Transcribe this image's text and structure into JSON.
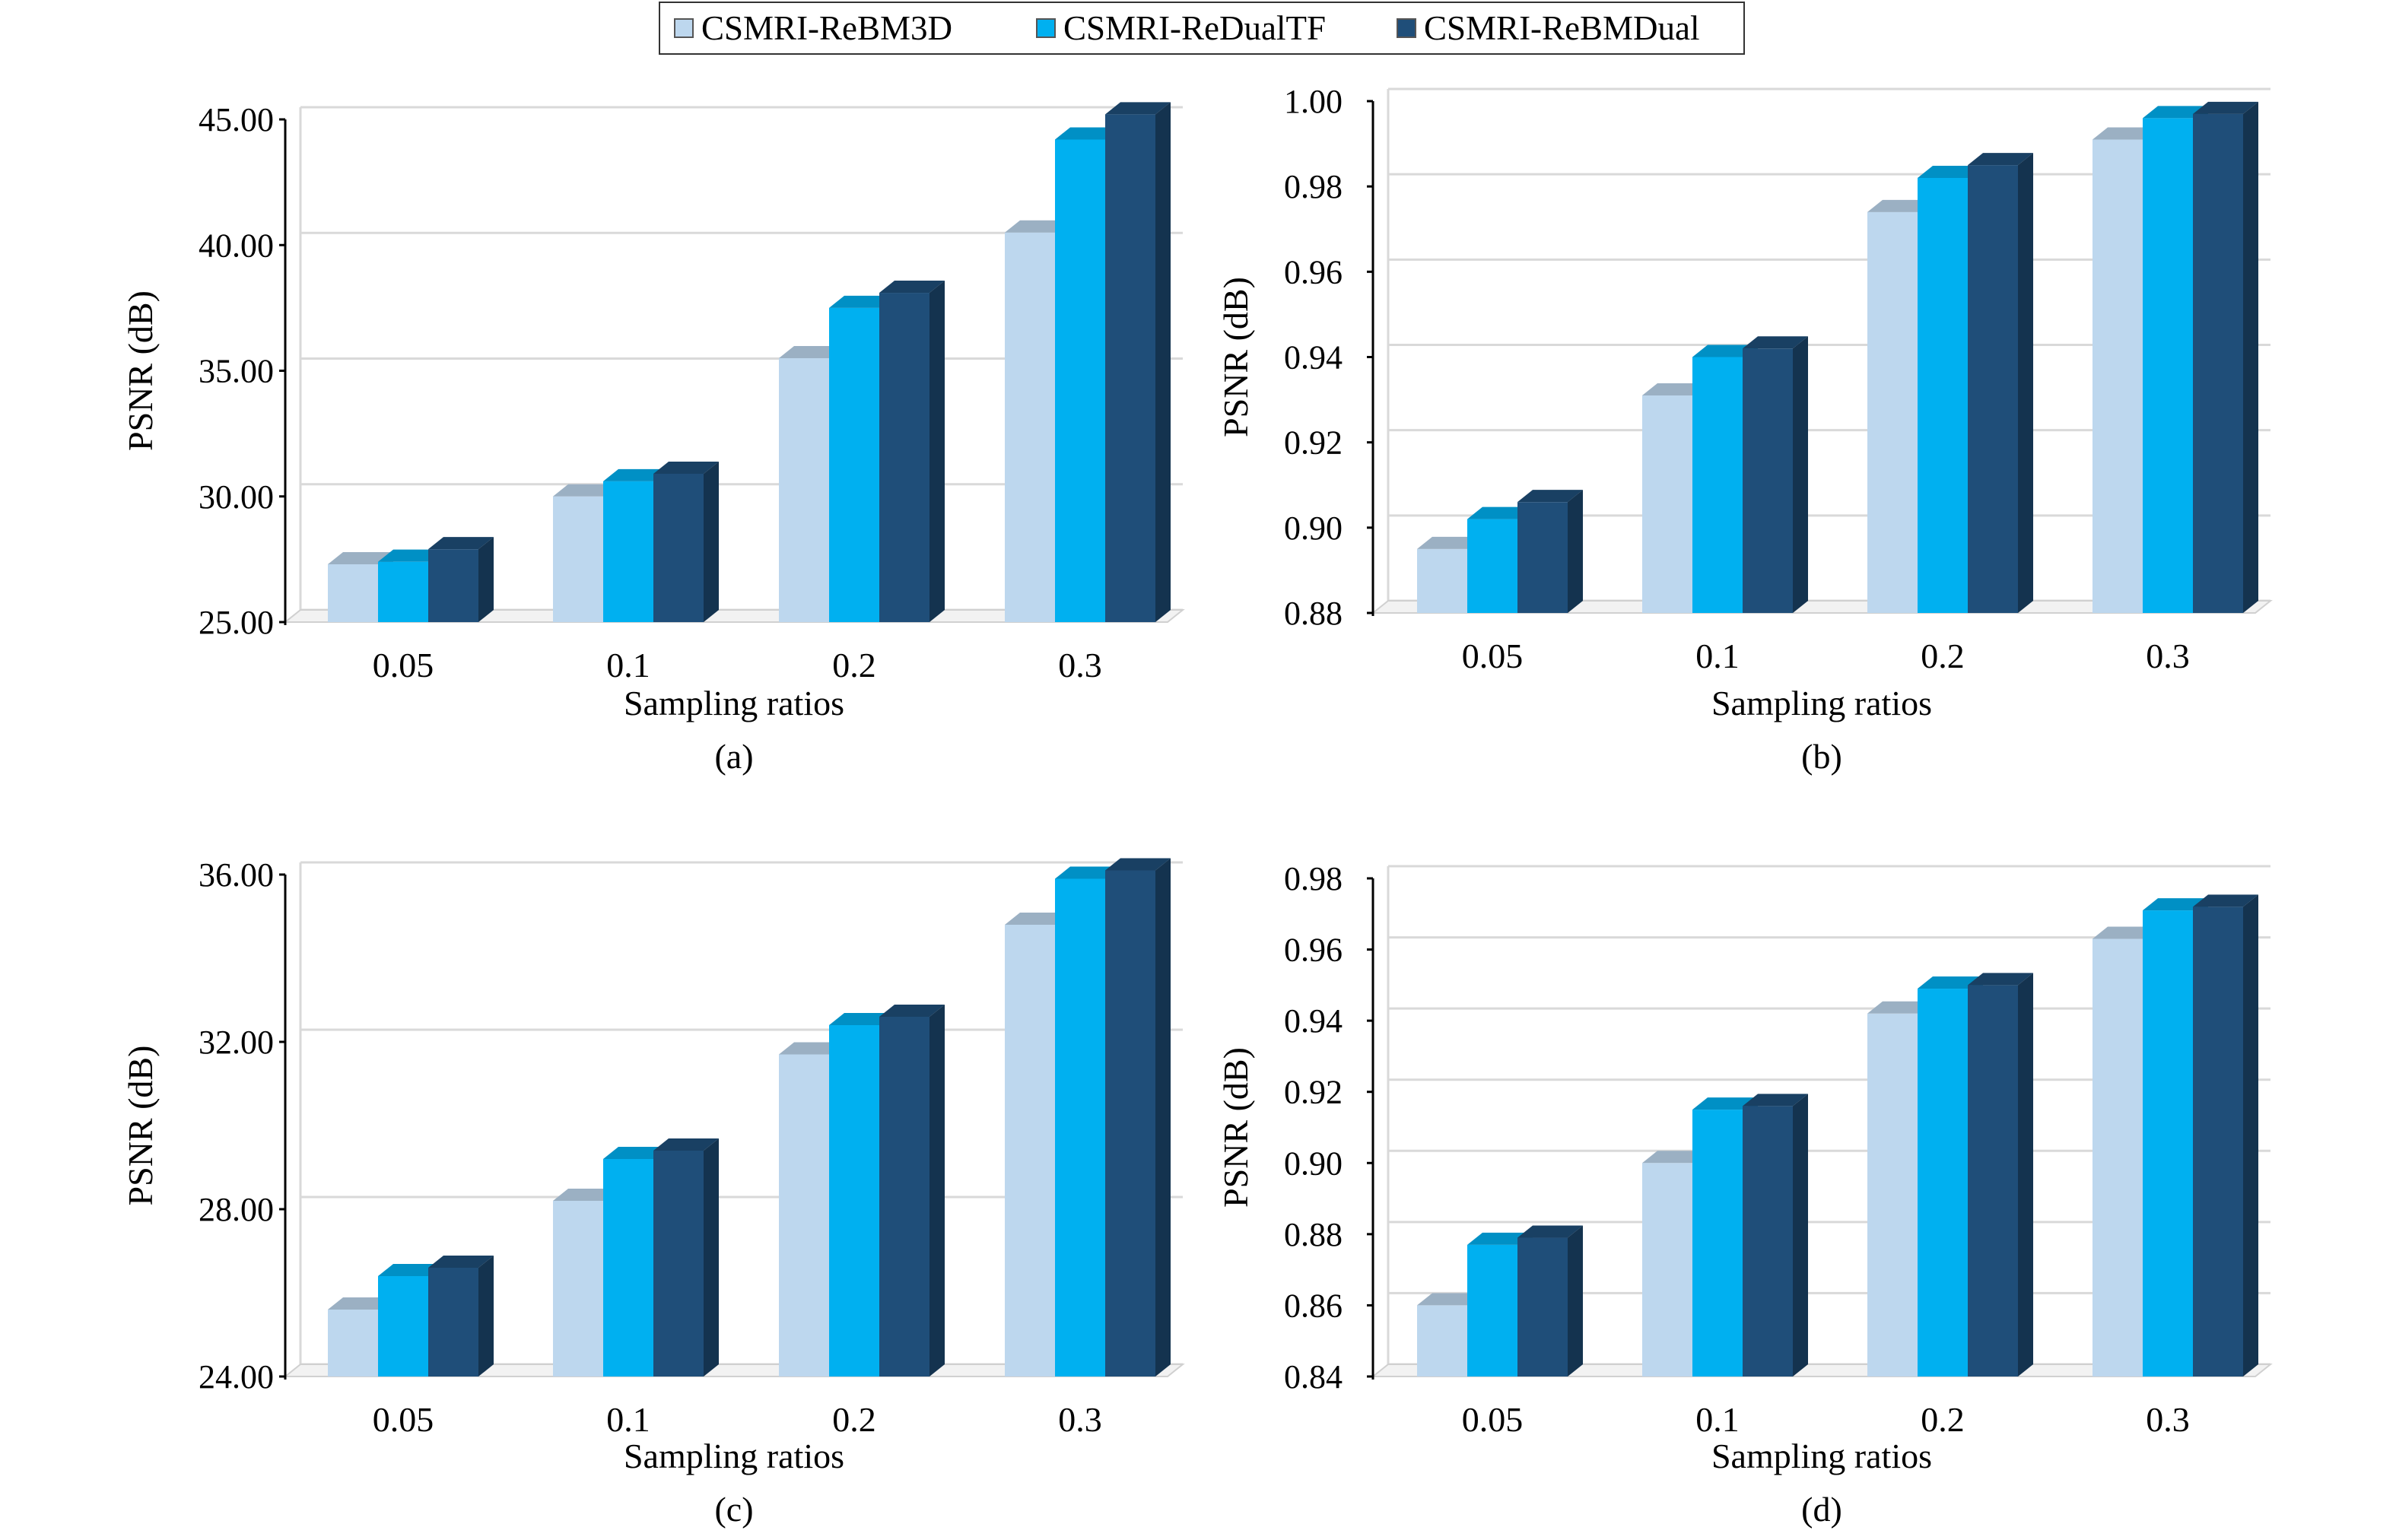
{
  "legend": [
    {
      "name": "CSMRI-ReBM3D",
      "color": "#bdd7ee"
    },
    {
      "name": "CSMRI-ReDualTF",
      "color": "#00b0f0"
    },
    {
      "name": "CSMRI-ReBMDual",
      "color": "#1f4e79"
    }
  ],
  "chart_data": [
    {
      "type": "bar",
      "panel_label": "(a)",
      "xlabel": "Sampling ratios",
      "ylabel": "PSNR (dB)",
      "categories": [
        "0.05",
        "0.1",
        "0.2",
        "0.3"
      ],
      "ylim": [
        25,
        45
      ],
      "yticks": [
        "25.00",
        "30.00",
        "35.00",
        "40.00",
        "45.00"
      ],
      "grid": true,
      "series": [
        {
          "name": "CSMRI-ReBM3D",
          "values": [
            27.3,
            30.0,
            35.5,
            40.5
          ]
        },
        {
          "name": "CSMRI-ReDualTF",
          "values": [
            27.4,
            30.6,
            37.5,
            44.2
          ]
        },
        {
          "name": "CSMRI-ReBMDual",
          "values": [
            27.9,
            30.9,
            38.1,
            45.2
          ]
        }
      ]
    },
    {
      "type": "bar",
      "panel_label": "(b)",
      "xlabel": "Sampling ratios",
      "ylabel": "PSNR (dB)",
      "categories": [
        "0.05",
        "0.1",
        "0.2",
        "0.3"
      ],
      "ylim": [
        0.88,
        1.0
      ],
      "yticks": [
        "0.88",
        "0.90",
        "0.92",
        "0.94",
        "0.96",
        "0.98",
        "1.00"
      ],
      "grid": true,
      "series": [
        {
          "name": "CSMRI-ReBM3D",
          "values": [
            0.895,
            0.931,
            0.974,
            0.991
          ]
        },
        {
          "name": "CSMRI-ReDualTF",
          "values": [
            0.902,
            0.94,
            0.982,
            0.996
          ]
        },
        {
          "name": "CSMRI-ReBMDual",
          "values": [
            0.906,
            0.942,
            0.985,
            0.997
          ]
        }
      ]
    },
    {
      "type": "bar",
      "panel_label": "(c)",
      "xlabel": "Sampling ratios",
      "ylabel": "PSNR (dB)",
      "categories": [
        "0.05",
        "0.1",
        "0.2",
        "0.3"
      ],
      "ylim": [
        24,
        36
      ],
      "yticks": [
        "24.00",
        "28.00",
        "32.00",
        "36.00"
      ],
      "grid": true,
      "series": [
        {
          "name": "CSMRI-ReBM3D",
          "values": [
            25.6,
            28.2,
            31.7,
            34.8
          ]
        },
        {
          "name": "CSMRI-ReDualTF",
          "values": [
            26.4,
            29.2,
            32.4,
            35.9
          ]
        },
        {
          "name": "CSMRI-ReBMDual",
          "values": [
            26.6,
            29.4,
            32.6,
            36.1
          ]
        }
      ]
    },
    {
      "type": "bar",
      "panel_label": "(d)",
      "xlabel": "Sampling ratios",
      "ylabel": "PSNR (dB)",
      "categories": [
        "0.05",
        "0.1",
        "0.2",
        "0.3"
      ],
      "ylim": [
        0.84,
        0.98
      ],
      "yticks": [
        "0.84",
        "0.86",
        "0.88",
        "0.90",
        "0.92",
        "0.94",
        "0.96",
        "0.98"
      ],
      "grid": true,
      "series": [
        {
          "name": "CSMRI-ReBM3D",
          "values": [
            0.86,
            0.9,
            0.942,
            0.963
          ]
        },
        {
          "name": "CSMRI-ReDualTF",
          "values": [
            0.877,
            0.915,
            0.949,
            0.971
          ]
        },
        {
          "name": "CSMRI-ReBMDual",
          "values": [
            0.879,
            0.916,
            0.95,
            0.972
          ]
        }
      ]
    }
  ]
}
